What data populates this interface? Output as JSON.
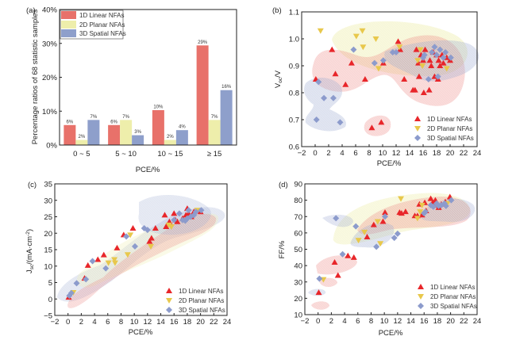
{
  "colors": {
    "linear": "#e8716a",
    "linear_marker": "#e8262a",
    "planar": "#eeeeab",
    "planar_marker": "#e8c84c",
    "spatial": "#8e9fcb",
    "spatial_marker": "#8c9bcc"
  },
  "chart_data": [
    {
      "id": "a",
      "panel_label": "(a)",
      "type": "bar",
      "title": "",
      "xlabel": "PCE/%",
      "ylabel": "Percentage ratios of 68 statistic samples",
      "categories": [
        "0 ~ 5",
        "5 ~ 10",
        "10 ~ 15",
        "≥ 15"
      ],
      "ylim": [
        0,
        40
      ],
      "yticks": [
        "0%",
        "10%",
        "20%",
        "30%",
        "40%"
      ],
      "legend_position": "top-left",
      "series": [
        {
          "name": "1D Linear NFAs",
          "values": [
            5.9,
            5.9,
            10.3,
            29.4
          ],
          "labels": [
            "6%",
            "6%",
            "10%",
            "29%"
          ]
        },
        {
          "name": "2D Planar NFAs",
          "values": [
            1.5,
            7.4,
            1.5,
            7.4
          ],
          "labels": [
            "2%",
            "7%",
            "2%",
            "7%"
          ]
        },
        {
          "name": "3D Spatial NFAs",
          "values": [
            7.4,
            2.9,
            4.4,
            16.2
          ],
          "labels": [
            "7%",
            "3%",
            "4%",
            "16%"
          ]
        }
      ]
    },
    {
      "id": "b",
      "panel_label": "(b)",
      "type": "scatter",
      "xlabel": "PCE/%",
      "ylabel": "Voc/V",
      "ylabel_main": "V",
      "ylabel_sub": "oc",
      "ylabel_tail": "/V",
      "xlim": [
        -2,
        24
      ],
      "ylim": [
        0.6,
        1.1
      ],
      "xticks": [
        "-2",
        "0",
        "2",
        "4",
        "6",
        "8",
        "10",
        "12",
        "14",
        "16",
        "18",
        "20",
        "22",
        "24"
      ],
      "yticks": [
        "0.6",
        "0.7",
        "0.8",
        "0.9",
        "1.0",
        "1.1"
      ],
      "legend_position": "bottom-right",
      "series": [
        {
          "name": "1D Linear NFAs",
          "marker": "triangle-up",
          "x": [
            0.1,
            2.5,
            3.0,
            4.5,
            5.4,
            7.4,
            8.4,
            9.8,
            10.1,
            12.3,
            12.6,
            13.2,
            14.5,
            14.8,
            15.0,
            15.3,
            15.4,
            15.7,
            16.0,
            16.1,
            16.3,
            16.9,
            17.0,
            17.2,
            17.5,
            17.7,
            18.0,
            18.2,
            18.3,
            18.5,
            18.8,
            19.0,
            19.5,
            20.0
          ],
          "y": [
            0.85,
            0.96,
            0.87,
            0.83,
            0.91,
            0.85,
            0.67,
            0.69,
            0.91,
            0.99,
            0.96,
            0.85,
            0.81,
            0.81,
            0.96,
            0.91,
            0.86,
            0.94,
            0.92,
            0.8,
            0.96,
            0.81,
            0.92,
            0.9,
            0.95,
            0.86,
            0.94,
            0.85,
            0.92,
            0.9,
            0.94,
            0.91,
            0.93,
            0.92
          ]
        },
        {
          "name": "2D Planar NFAs",
          "marker": "triangle-down",
          "x": [
            0.8,
            6.1,
            7.0,
            7.1,
            9.0,
            9.4,
            12.5,
            15.2,
            15.6,
            15.9,
            19.5
          ],
          "y": [
            1.03,
            1.01,
            1.03,
            0.97,
            1.0,
            0.89,
            0.97,
            0.92,
            0.96,
            0.9,
            0.89
          ]
        },
        {
          "name": "3D Spatial NFAs",
          "marker": "diamond",
          "x": [
            0.2,
            0.5,
            1.3,
            2.7,
            3.7,
            5.7,
            8.8,
            10.1,
            11.5,
            12.0,
            16.0,
            16.2,
            16.8,
            17.3,
            17.7,
            18.0,
            18.2,
            18.5,
            19.0,
            19.3,
            20.1
          ],
          "y": [
            0.7,
            0.84,
            0.78,
            0.78,
            0.69,
            0.96,
            0.91,
            0.92,
            0.95,
            0.95,
            0.93,
            0.94,
            0.85,
            0.95,
            0.97,
            0.94,
            0.86,
            0.96,
            0.93,
            0.95,
            0.93
          ]
        }
      ]
    },
    {
      "id": "c",
      "panel_label": "(c)",
      "type": "scatter",
      "xlabel": "PCE/%",
      "ylabel": "Jsc/(mA·cm-2)",
      "ylabel_main": "J",
      "ylabel_sub": "sc",
      "ylabel_tail": "/(mA·cm",
      "ylabel_sup": "-2",
      "ylabel_end": ")",
      "xlim": [
        -2,
        24
      ],
      "ylim": [
        -5,
        35
      ],
      "xticks": [
        "-2",
        "0",
        "2",
        "4",
        "6",
        "8",
        "10",
        "12",
        "14",
        "16",
        "18",
        "20",
        "22",
        "24"
      ],
      "yticks": [
        "-5",
        "0",
        "5",
        "10",
        "15",
        "20",
        "25",
        "30",
        "35"
      ],
      "legend_position": "bottom-right",
      "series": [
        {
          "name": "1D Linear NFAs",
          "marker": "triangle-up",
          "x": [
            0.1,
            2.5,
            3.0,
            4.5,
            5.4,
            7.4,
            8.4,
            9.8,
            12.3,
            12.6,
            13.2,
            14.6,
            14.8,
            15.3,
            16.0,
            16.2,
            16.5,
            17.3,
            17.8,
            18.0,
            18.2,
            18.6,
            19.0,
            20.0
          ],
          "y": [
            0.5,
            6.3,
            10.2,
            12.0,
            13.4,
            15.5,
            19.5,
            21.5,
            17.5,
            18.5,
            21.5,
            25.5,
            22.0,
            23.5,
            26.0,
            24.0,
            23.5,
            24.5,
            25.5,
            27.5,
            26.0,
            25.0,
            26.5,
            26.5
          ]
        },
        {
          "name": "2D Planar NFAs",
          "marker": "triangle-down",
          "x": [
            0.8,
            6.1,
            7.0,
            7.1,
            9.0,
            9.4,
            12.5,
            15.2,
            15.6,
            19.5
          ],
          "y": [
            2.0,
            11.0,
            12.0,
            11.0,
            13.5,
            19.5,
            16.0,
            22.5,
            22.0,
            27.0
          ]
        },
        {
          "name": "3D Spatial NFAs",
          "marker": "diamond",
          "x": [
            0.2,
            0.5,
            1.3,
            2.7,
            3.7,
            5.7,
            8.8,
            10.1,
            11.5,
            12.0,
            16.0,
            16.8,
            17.3,
            17.7,
            18.0,
            18.2,
            18.5,
            19.0,
            19.3,
            20.1
          ],
          "y": [
            1.0,
            1.8,
            4.8,
            6.0,
            11.5,
            9.3,
            19.0,
            16.0,
            21.5,
            21.0,
            24.0,
            26.0,
            24.0,
            23.8,
            24.5,
            27.0,
            25.0,
            25.5,
            26.5,
            27.0
          ]
        }
      ]
    },
    {
      "id": "d",
      "panel_label": "(d)",
      "type": "scatter",
      "xlabel": "PCE/%",
      "ylabel": "FF/%",
      "xlim": [
        -2,
        24
      ],
      "ylim": [
        10,
        90
      ],
      "xticks": [
        "-2",
        "0",
        "2",
        "4",
        "6",
        "8",
        "10",
        "12",
        "14",
        "16",
        "18",
        "20",
        "22",
        "24"
      ],
      "yticks": [
        "10",
        "20",
        "30",
        "40",
        "50",
        "60",
        "70",
        "80",
        "90"
      ],
      "legend_position": "bottom-right",
      "series": [
        {
          "name": "1D Linear NFAs",
          "marker": "triangle-up",
          "x": [
            0.1,
            2.5,
            3.0,
            4.5,
            5.4,
            7.4,
            8.4,
            9.8,
            10.1,
            12.3,
            12.6,
            13.2,
            14.6,
            15.0,
            15.3,
            15.7,
            16.1,
            16.3,
            17.0,
            17.3,
            17.7,
            18.0,
            18.2,
            18.6,
            19.2,
            19.9
          ],
          "y": [
            23.5,
            42.0,
            34.0,
            46.0,
            45.0,
            57.5,
            65.0,
            67.0,
            72.5,
            72.5,
            72.0,
            73.0,
            70.5,
            70.5,
            77.5,
            71.0,
            78.5,
            73.5,
            81.0,
            78.5,
            80.0,
            77.0,
            75.5,
            77.5,
            79.0,
            82.0
          ]
        },
        {
          "name": "2D Planar NFAs",
          "marker": "triangle-down",
          "x": [
            0.8,
            6.1,
            7.0,
            9.0,
            9.4,
            12.5,
            15.0,
            15.4,
            15.7,
            19.5
          ],
          "y": [
            31.5,
            55.5,
            60.5,
            67.0,
            53.5,
            81.0,
            69.0,
            73.0,
            77.0,
            78.0
          ]
        },
        {
          "name": "3D Spatial NFAs",
          "marker": "diamond",
          "x": [
            0.2,
            2.7,
            3.7,
            5.7,
            8.8,
            10.1,
            11.5,
            12.0,
            16.0,
            16.2,
            17.0,
            17.4,
            17.9,
            18.2,
            18.6,
            19.1,
            19.3,
            20.1
          ],
          "y": [
            32.0,
            69.0,
            47.0,
            64.0,
            51.5,
            70.0,
            57.0,
            59.5,
            72.0,
            73.0,
            77.0,
            76.0,
            78.0,
            76.5,
            77.0,
            78.0,
            76.5,
            80.0
          ]
        }
      ]
    }
  ]
}
